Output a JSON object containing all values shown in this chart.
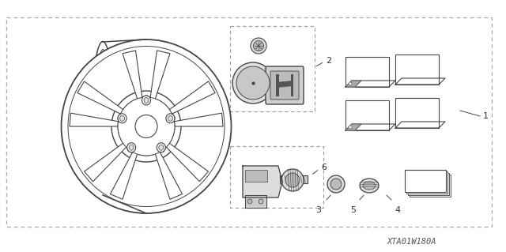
{
  "bg_color": "#ffffff",
  "line_color": "#444444",
  "dashed_color": "#888888",
  "text_color": "#333333",
  "diagram_id": "XTA01W180A",
  "figsize": [
    6.4,
    3.19
  ],
  "dpi": 100
}
